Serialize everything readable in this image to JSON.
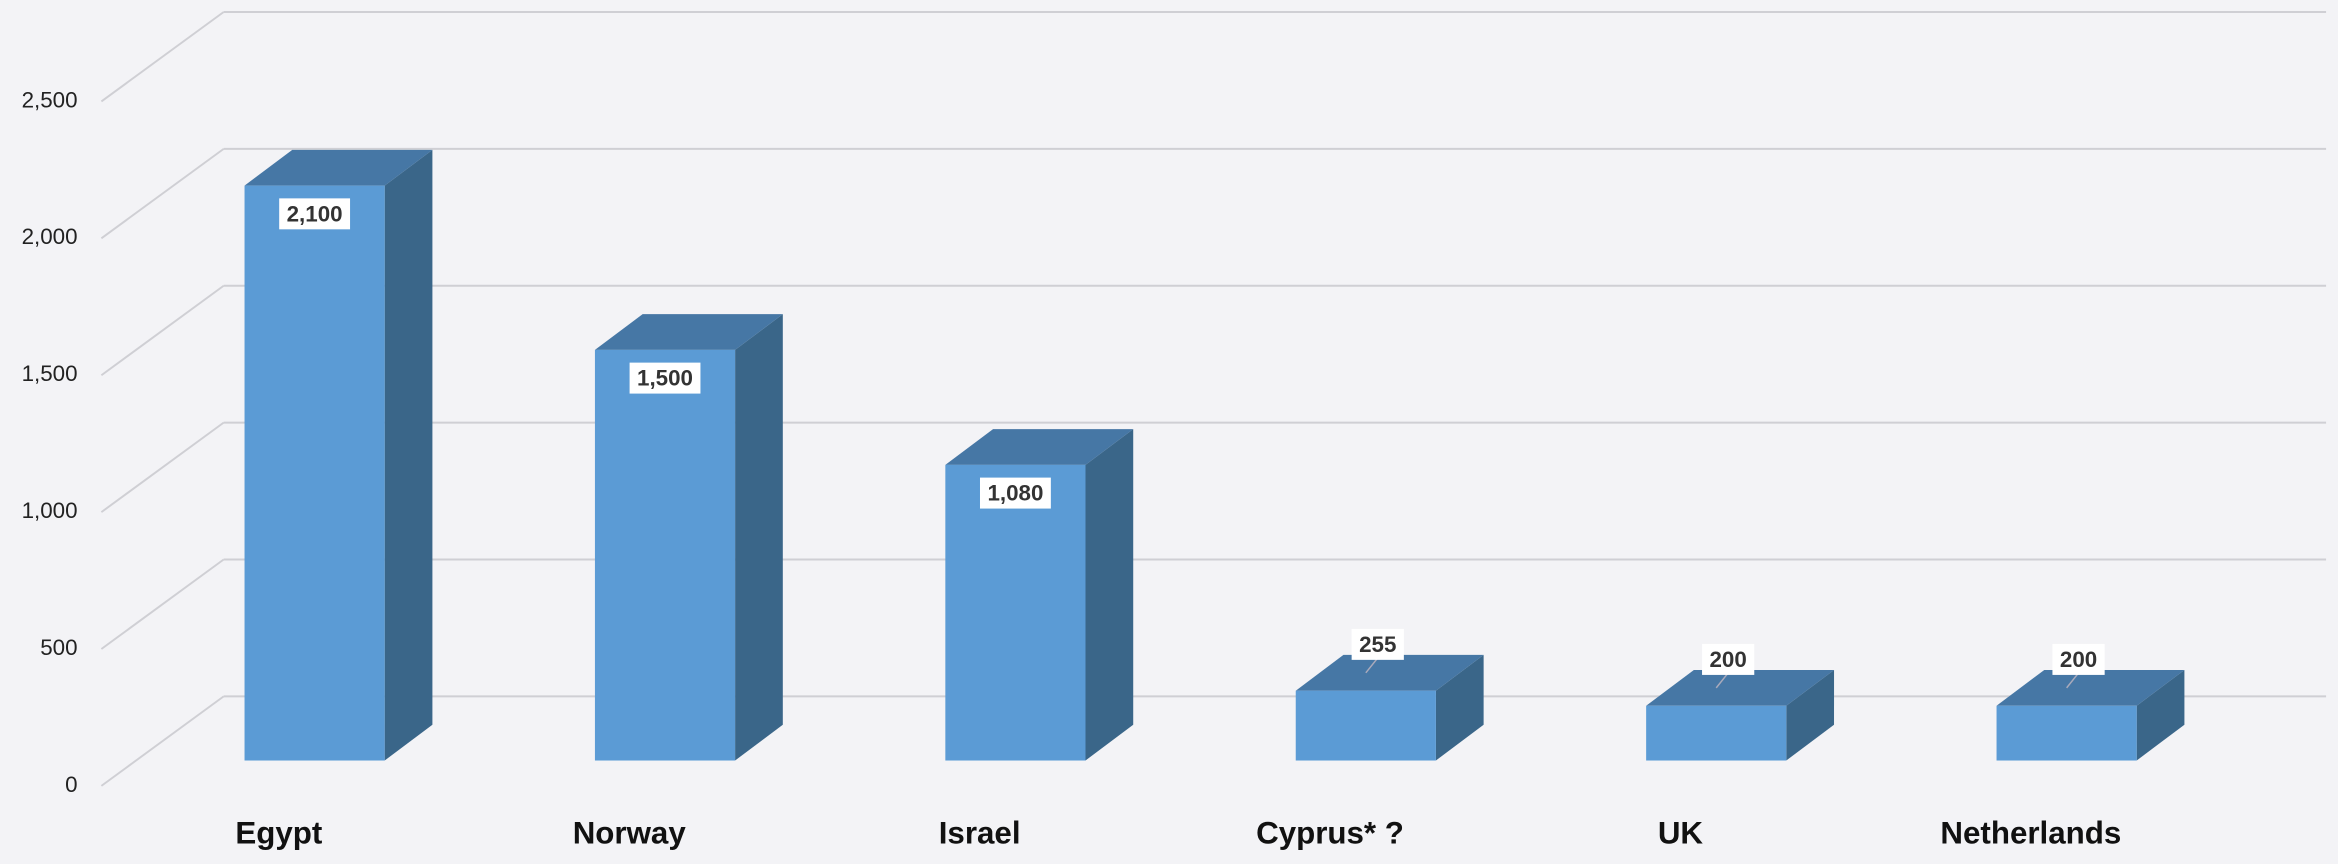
{
  "chart_data": {
    "type": "bar3d",
    "categories": [
      "Egypt",
      "Norway",
      "Israel",
      "Cyprus* ?",
      "UK",
      "Netherlands"
    ],
    "values": [
      2100,
      1500,
      1080,
      255,
      200,
      200
    ],
    "value_labels": [
      "2,100",
      "1,500",
      "1,080",
      "255",
      "200",
      "200"
    ],
    "color": "#5b9bd5",
    "ylim": [
      0,
      2500
    ],
    "yticks": [
      0,
      500,
      {
        "value": 1000,
        "label": "1,000"
      },
      {
        "value": 1500,
        "label": "1,500"
      },
      {
        "value": 2000,
        "label": "2,000"
      },
      {
        "value": 2500,
        "label": "2,500"
      }
    ],
    "grid": true
  }
}
